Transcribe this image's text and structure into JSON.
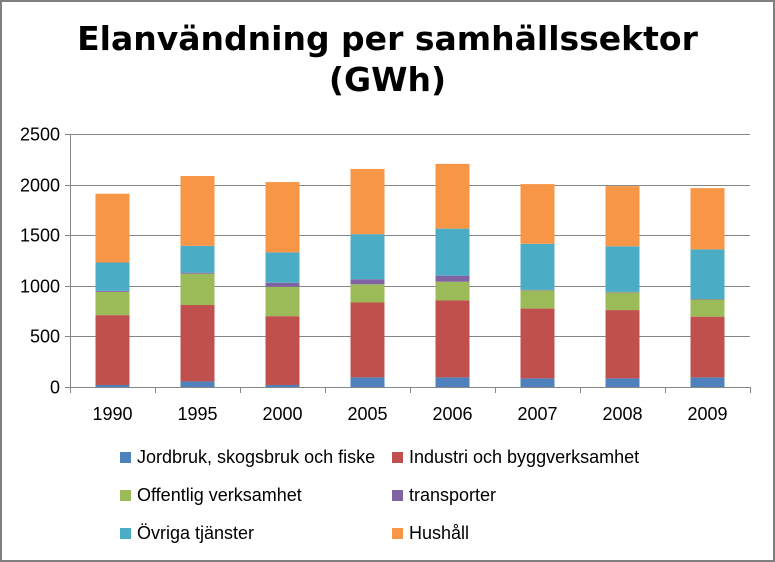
{
  "chart_data": {
    "type": "bar",
    "stacked": true,
    "title_lines": [
      "Elanvändning per samhällssektor",
      "(GWh)"
    ],
    "categories": [
      "1990",
      "1995",
      "2000",
      "2005",
      "2006",
      "2007",
      "2008",
      "2009"
    ],
    "ylim": [
      0,
      2500
    ],
    "yticks": [
      0,
      500,
      1000,
      1500,
      2000,
      2500
    ],
    "grid": true,
    "legend_position": "bottom",
    "series": [
      {
        "name": "Jordbruk, skogsbruk och fiske",
        "color": "#4f81bd",
        "values": [
          20,
          55,
          20,
          95,
          95,
          85,
          85,
          95
        ]
      },
      {
        "name": "Industri och byggverksamhet",
        "color": "#c0504d",
        "values": [
          690,
          755,
          680,
          740,
          760,
          690,
          675,
          600
        ]
      },
      {
        "name": "Offentlig verksamhet",
        "color": "#9bbb59",
        "values": [
          230,
          310,
          290,
          180,
          185,
          180,
          175,
          170
        ]
      },
      {
        "name": "transporter",
        "color": "#8064a2",
        "values": [
          10,
          10,
          40,
          50,
          60,
          5,
          5,
          5
        ]
      },
      {
        "name": "Övriga tjänster",
        "color": "#4bacc6",
        "values": [
          280,
          265,
          300,
          445,
          465,
          455,
          450,
          490
        ]
      },
      {
        "name": "Hushåll",
        "color": "#f79646",
        "values": [
          680,
          690,
          695,
          645,
          640,
          590,
          595,
          605
        ]
      }
    ]
  }
}
